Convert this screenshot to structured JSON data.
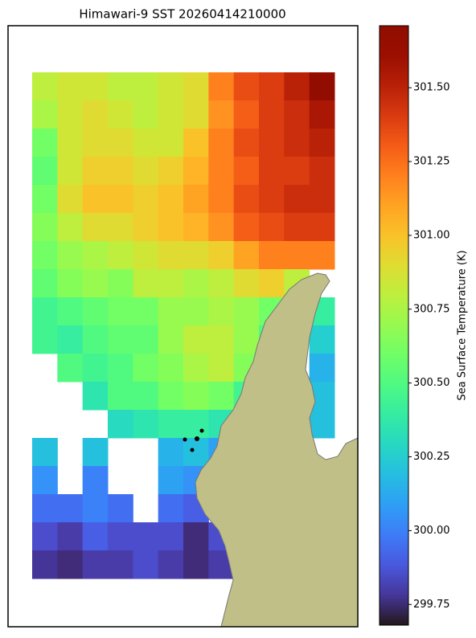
{
  "chart_data": {
    "type": "heatmap",
    "title": "Himawari-9 SST 20260414210000",
    "colorbar_label": "Sea Surface Temperature (K)",
    "colormap": "turbo",
    "clim": [
      299.68,
      301.71
    ],
    "cticks": [
      {
        "value": 301.5,
        "label": "301.50"
      },
      301.25,
      {
        "value": 301,
        "label": "301.00"
      },
      300.75,
      {
        "value": 300.5,
        "label": "300.50"
      },
      300.25,
      {
        "value": 300,
        "label": "300.00"
      },
      299.75
    ],
    "values": [
      [
        300.8,
        300.85,
        300.85,
        300.8,
        300.8,
        300.85,
        300.9,
        301.2,
        301.35,
        301.4,
        301.5,
        301.65
      ],
      [
        300.75,
        300.85,
        300.9,
        300.85,
        300.8,
        300.85,
        300.9,
        301.15,
        301.3,
        301.4,
        301.45,
        301.55
      ],
      [
        300.6,
        300.85,
        300.9,
        300.9,
        300.85,
        300.85,
        301.0,
        301.2,
        301.35,
        301.4,
        301.45,
        301.5
      ],
      [
        300.55,
        300.85,
        300.95,
        300.95,
        300.9,
        300.95,
        301.05,
        301.2,
        301.3,
        301.4,
        301.4,
        301.45
      ],
      [
        300.6,
        300.9,
        301.0,
        301.0,
        300.95,
        301.0,
        301.1,
        301.2,
        301.35,
        301.4,
        301.45,
        301.45
      ],
      [
        300.65,
        300.8,
        300.9,
        300.9,
        300.95,
        301.0,
        301.05,
        301.15,
        301.3,
        301.35,
        301.4,
        301.4
      ],
      [
        300.6,
        300.7,
        300.75,
        300.8,
        300.85,
        300.9,
        300.9,
        300.95,
        301.1,
        301.2,
        301.2,
        301.2
      ],
      [
        300.55,
        300.65,
        300.7,
        300.65,
        300.8,
        300.8,
        300.75,
        300.8,
        300.9,
        300.95,
        300.8,
        null
      ],
      [
        300.45,
        300.5,
        300.55,
        300.6,
        300.6,
        300.7,
        300.7,
        300.75,
        300.7,
        300.6,
        null,
        300.4
      ],
      [
        300.45,
        300.4,
        300.5,
        300.55,
        300.55,
        300.7,
        300.8,
        300.8,
        300.7,
        300.5,
        null,
        300.25
      ],
      [
        null,
        300.5,
        300.45,
        300.5,
        300.6,
        300.65,
        300.75,
        300.8,
        300.65,
        null,
        null,
        300.15
      ],
      [
        null,
        null,
        300.35,
        300.5,
        300.5,
        300.6,
        300.65,
        300.6,
        300.45,
        null,
        null,
        300.2
      ],
      [
        null,
        null,
        null,
        300.3,
        300.35,
        300.4,
        300.4,
        300.35,
        null,
        null,
        null,
        300.2
      ],
      [
        300.2,
        null,
        300.2,
        null,
        null,
        300.15,
        300.2,
        300.1,
        null,
        null,
        null,
        null
      ],
      [
        300.05,
        null,
        300.0,
        null,
        null,
        300.1,
        300.05,
        null,
        null,
        null,
        null,
        null
      ],
      [
        299.95,
        299.95,
        300.0,
        299.95,
        null,
        299.95,
        299.9,
        null,
        null,
        null,
        null,
        null
      ],
      [
        299.85,
        299.8,
        299.9,
        299.85,
        299.85,
        299.85,
        299.75,
        299.85,
        null,
        null,
        null,
        null
      ],
      [
        299.78,
        299.75,
        299.8,
        299.8,
        299.85,
        299.8,
        299.75,
        299.8,
        null,
        null,
        null,
        null
      ]
    ]
  }
}
